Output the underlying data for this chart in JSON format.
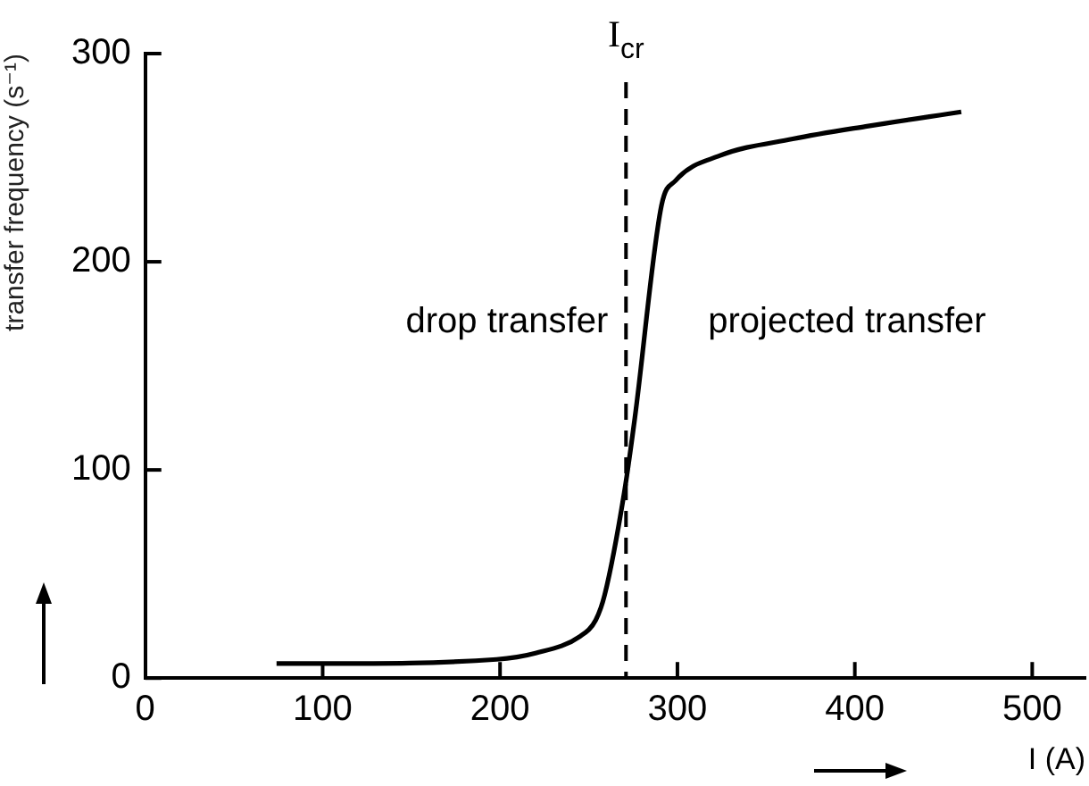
{
  "chart_data": {
    "type": "line",
    "xlabel": "I (A)",
    "ylabel": "transfer frequency (s⁻¹)",
    "x": [
      74,
      100,
      198,
      220,
      245,
      254,
      259,
      270,
      276,
      291,
      299,
      324,
      365,
      406,
      460
    ],
    "series": [
      {
        "color": "#000000",
        "values": [
          7,
          7,
          9,
          12,
          20,
          28,
          40,
          89,
          125,
          227,
          239,
          251,
          259,
          265,
          272
        ]
      }
    ],
    "xlim": [
      0,
      530
    ],
    "xticks": [
      0,
      100,
      200,
      300,
      400,
      500
    ],
    "ylim": [
      0,
      300
    ],
    "yticks": [
      0,
      100,
      200,
      300
    ],
    "ref_lines": [
      {
        "axis": "x",
        "value": 271,
        "label": "I$_{cr}$",
        "color": "#000000",
        "line_style": "dashed"
      }
    ],
    "annotations": [
      "drop transfer",
      "projected transfer"
    ],
    "marker": "none",
    "line_style": "solid",
    "legend": false
  }
}
